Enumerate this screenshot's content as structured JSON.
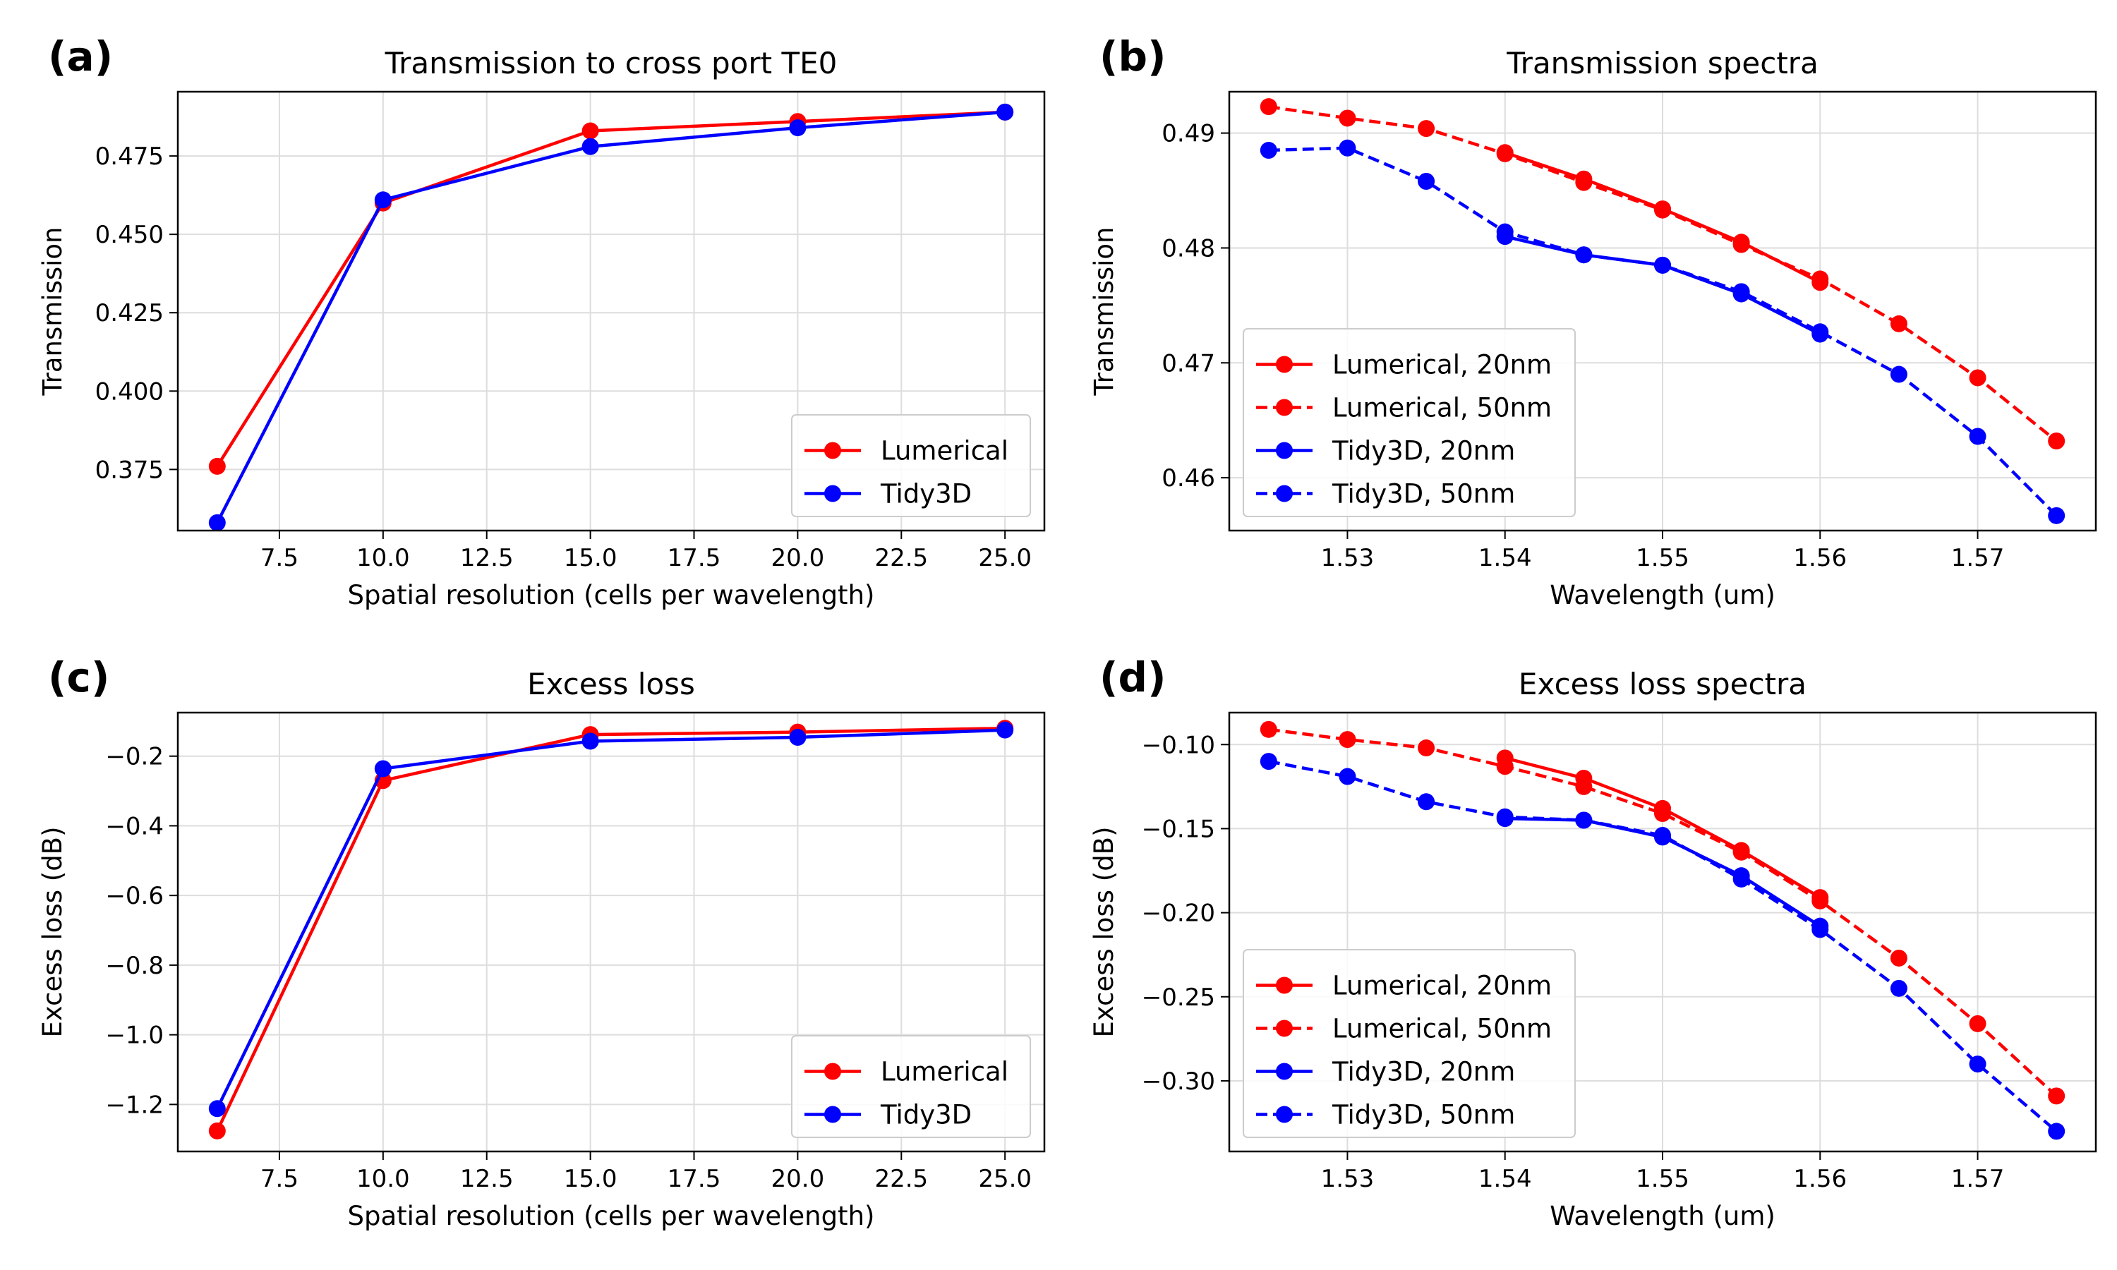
{
  "colors": {
    "lumerical": "#ff0000",
    "tidy3d": "#0000ff",
    "grid": "#dddddd",
    "axis": "#000000"
  },
  "chart_data": [
    {
      "panel_label": "(a)",
      "type": "line",
      "title": "Transmission to cross port TE0",
      "xlabel": "Spatial resolution (cells per wavelength)",
      "ylabel": "Transmission",
      "xlim": [
        5.05,
        25.95
      ],
      "ylim": [
        0.3555,
        0.4955
      ],
      "x_ticks": [
        7.5,
        10.0,
        12.5,
        15.0,
        17.5,
        20.0,
        22.5,
        25.0
      ],
      "x_tick_labels": [
        "7.5",
        "10.0",
        "12.5",
        "15.0",
        "17.5",
        "20.0",
        "22.5",
        "25.0"
      ],
      "y_ticks": [
        0.375,
        0.4,
        0.425,
        0.45,
        0.475
      ],
      "y_tick_labels": [
        "0.375",
        "0.400",
        "0.425",
        "0.450",
        "0.475"
      ],
      "grid": true,
      "legend_position": "lower-right",
      "series": [
        {
          "name": "Lumerical",
          "color": "#ff0000",
          "dash": "solid",
          "x": [
            6,
            10,
            15,
            20,
            25
          ],
          "y": [
            0.376,
            0.46,
            0.483,
            0.486,
            0.489
          ]
        },
        {
          "name": "Tidy3D",
          "color": "#0000ff",
          "dash": "solid",
          "x": [
            6,
            10,
            15,
            20,
            25
          ],
          "y": [
            0.358,
            0.461,
            0.478,
            0.484,
            0.489
          ]
        }
      ]
    },
    {
      "panel_label": "(b)",
      "type": "line",
      "title": "Transmission spectra",
      "xlabel": "Wavelength (um)",
      "ylabel": "Transmission",
      "xlim": [
        1.5225,
        1.5775
      ],
      "ylim": [
        0.4554,
        0.4936
      ],
      "x_ticks": [
        1.53,
        1.54,
        1.55,
        1.56,
        1.57
      ],
      "x_tick_labels": [
        "1.53",
        "1.54",
        "1.55",
        "1.56",
        "1.57"
      ],
      "y_ticks": [
        0.46,
        0.47,
        0.48,
        0.49
      ],
      "y_tick_labels": [
        "0.46",
        "0.47",
        "0.48",
        "0.49"
      ],
      "grid": true,
      "legend_position": "lower-left",
      "series": [
        {
          "name": "Lumerical, 20nm",
          "color": "#ff0000",
          "dash": "solid",
          "x": [
            1.54,
            1.545,
            1.55,
            1.555,
            1.56
          ],
          "y": [
            0.4883,
            0.486,
            0.4834,
            0.4805,
            0.477
          ]
        },
        {
          "name": "Lumerical, 50nm",
          "color": "#ff0000",
          "dash": "dashed",
          "x": [
            1.525,
            1.53,
            1.535,
            1.54,
            1.545,
            1.55,
            1.555,
            1.56,
            1.565,
            1.57,
            1.575
          ],
          "y": [
            0.4923,
            0.4913,
            0.4904,
            0.4882,
            0.4857,
            0.4833,
            0.4803,
            0.4773,
            0.4734,
            0.4687,
            0.4632
          ]
        },
        {
          "name": "Tidy3D, 20nm",
          "color": "#0000ff",
          "dash": "solid",
          "x": [
            1.54,
            1.545,
            1.55,
            1.555,
            1.56
          ],
          "y": [
            0.481,
            0.4794,
            0.4785,
            0.476,
            0.4725
          ]
        },
        {
          "name": "Tidy3D, 50nm",
          "color": "#0000ff",
          "dash": "dashed",
          "x": [
            1.525,
            1.53,
            1.535,
            1.54,
            1.545,
            1.55,
            1.555,
            1.56,
            1.565,
            1.57,
            1.575
          ],
          "y": [
            0.4885,
            0.4887,
            0.4858,
            0.4814,
            0.4794,
            0.4785,
            0.4762,
            0.4727,
            0.469,
            0.4636,
            0.4567
          ]
        }
      ]
    },
    {
      "panel_label": "(c)",
      "type": "line",
      "title": "Excess loss",
      "xlabel": "Spatial resolution (cells per wavelength)",
      "ylabel": "Excess loss (dB)",
      "xlim": [
        5.05,
        25.95
      ],
      "ylim": [
        -1.335,
        -0.075
      ],
      "x_ticks": [
        7.5,
        10.0,
        12.5,
        15.0,
        17.5,
        20.0,
        22.5,
        25.0
      ],
      "x_tick_labels": [
        "7.5",
        "10.0",
        "12.5",
        "15.0",
        "17.5",
        "20.0",
        "22.5",
        "25.0"
      ],
      "y_ticks": [
        -1.2,
        -1.0,
        -0.8,
        -0.6,
        -0.4,
        -0.2
      ],
      "y_tick_labels": [
        "−1.2",
        "−1.0",
        "−0.8",
        "−0.6",
        "−0.4",
        "−0.2"
      ],
      "grid": true,
      "legend_position": "lower-right",
      "series": [
        {
          "name": "Lumerical",
          "color": "#ff0000",
          "dash": "solid",
          "x": [
            6,
            10,
            15,
            20,
            25
          ],
          "y": [
            -1.276,
            -0.27,
            -0.138,
            -0.131,
            -0.12
          ]
        },
        {
          "name": "Tidy3D",
          "color": "#0000ff",
          "dash": "solid",
          "x": [
            6,
            10,
            15,
            20,
            25
          ],
          "y": [
            -1.212,
            -0.236,
            -0.157,
            -0.146,
            -0.125
          ]
        }
      ]
    },
    {
      "panel_label": "(d)",
      "type": "line",
      "title": "Excess loss spectra",
      "xlabel": "Wavelength (um)",
      "ylabel": "Excess loss (dB)",
      "xlim": [
        1.5225,
        1.5775
      ],
      "ylim": [
        -0.342,
        -0.081
      ],
      "x_ticks": [
        1.53,
        1.54,
        1.55,
        1.56,
        1.57
      ],
      "x_tick_labels": [
        "1.53",
        "1.54",
        "1.55",
        "1.56",
        "1.57"
      ],
      "y_ticks": [
        -0.3,
        -0.25,
        -0.2,
        -0.15,
        -0.1
      ],
      "y_tick_labels": [
        "−0.30",
        "−0.25",
        "−0.20",
        "−0.15",
        "−0.10"
      ],
      "grid": true,
      "legend_position": "lower-left",
      "series": [
        {
          "name": "Lumerical, 20nm",
          "color": "#ff0000",
          "dash": "solid",
          "x": [
            1.54,
            1.545,
            1.55,
            1.555,
            1.56
          ],
          "y": [
            -0.108,
            -0.12,
            -0.138,
            -0.163,
            -0.191
          ]
        },
        {
          "name": "Lumerical, 50nm",
          "color": "#ff0000",
          "dash": "dashed",
          "x": [
            1.525,
            1.53,
            1.535,
            1.54,
            1.545,
            1.55,
            1.555,
            1.56,
            1.565,
            1.57,
            1.575
          ],
          "y": [
            -0.091,
            -0.097,
            -0.102,
            -0.113,
            -0.125,
            -0.141,
            -0.164,
            -0.193,
            -0.227,
            -0.266,
            -0.309
          ]
        },
        {
          "name": "Tidy3D, 20nm",
          "color": "#0000ff",
          "dash": "solid",
          "x": [
            1.54,
            1.545,
            1.55,
            1.555,
            1.56
          ],
          "y": [
            -0.144,
            -0.145,
            -0.155,
            -0.178,
            -0.208
          ]
        },
        {
          "name": "Tidy3D, 50nm",
          "color": "#0000ff",
          "dash": "dashed",
          "x": [
            1.525,
            1.53,
            1.535,
            1.54,
            1.545,
            1.55,
            1.555,
            1.56,
            1.565,
            1.57,
            1.575
          ],
          "y": [
            -0.11,
            -0.119,
            -0.134,
            -0.143,
            -0.145,
            -0.154,
            -0.18,
            -0.21,
            -0.245,
            -0.29,
            -0.33
          ]
        }
      ]
    }
  ]
}
